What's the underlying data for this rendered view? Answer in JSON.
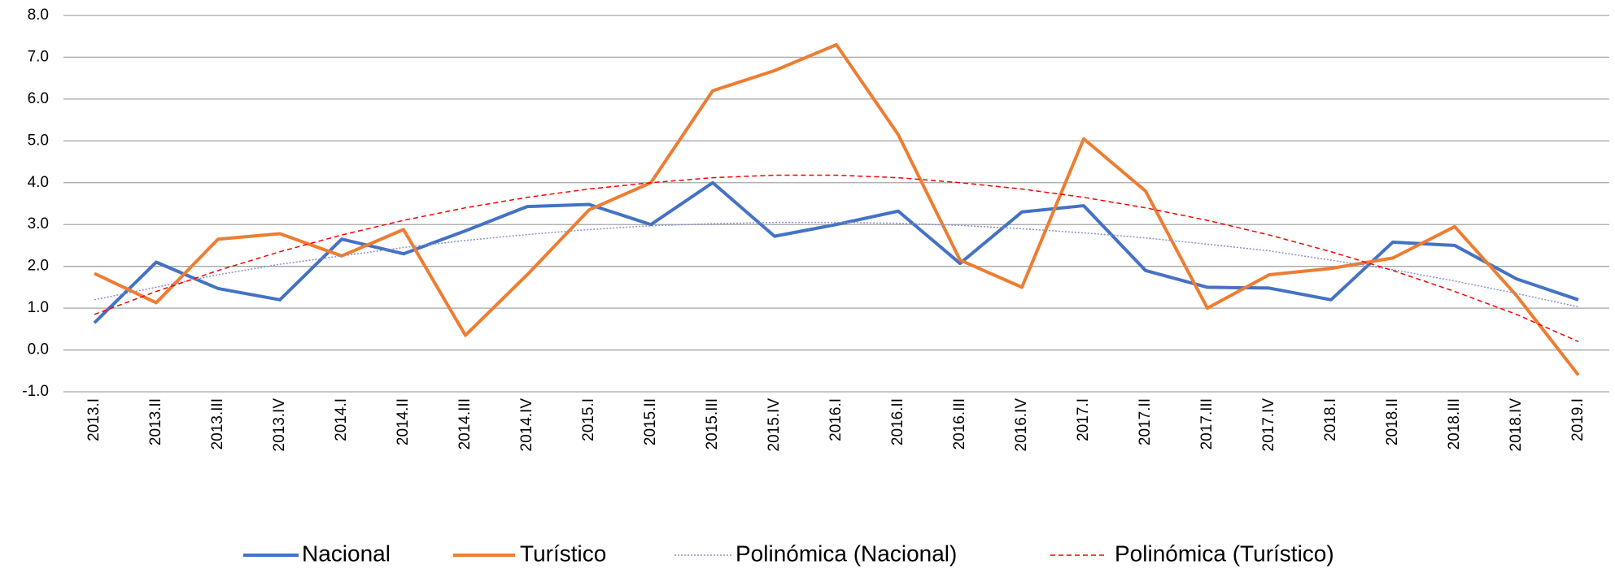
{
  "chart_data": {
    "type": "line",
    "categories": [
      "2013.I",
      "2013.II",
      "2013.III",
      "2013.IV",
      "2014.I",
      "2014.II",
      "2014.III",
      "2014.IV",
      "2015.I",
      "2015.II",
      "2015.III",
      "2015.IV",
      "2016.I",
      "2016.II",
      "2016.III",
      "2016.IV",
      "2017.I",
      "2017.II",
      "2017.III",
      "2017.IV",
      "2018.I",
      "2018.II",
      "2018.III",
      "2018.IV",
      "2019.I"
    ],
    "series": [
      {
        "name": "Nacional",
        "color": "#4472c4",
        "dash": "solid",
        "values": [
          0.65,
          2.1,
          1.47,
          1.2,
          2.65,
          2.3,
          2.85,
          3.43,
          3.48,
          3.0,
          4.0,
          2.72,
          3.0,
          3.32,
          2.07,
          3.3,
          3.45,
          1.9,
          1.5,
          1.48,
          1.2,
          2.58,
          2.5,
          1.7,
          1.2
        ]
      },
      {
        "name": "Turístico",
        "color": "#ed7d31",
        "dash": "solid",
        "values": [
          1.83,
          1.13,
          2.65,
          2.78,
          2.25,
          2.88,
          0.35,
          1.8,
          3.35,
          4.0,
          6.2,
          6.68,
          7.3,
          5.15,
          2.15,
          1.5,
          5.05,
          3.8,
          1.0,
          1.8,
          1.95,
          2.2,
          2.95,
          1.3,
          -0.6
        ]
      },
      {
        "name": "Polinómica (Nacional)",
        "color": "#8a8fcf",
        "dash": "dotted",
        "values": [
          1.2,
          1.5,
          1.8,
          2.05,
          2.25,
          2.45,
          2.62,
          2.76,
          2.88,
          2.97,
          3.02,
          3.05,
          3.05,
          3.03,
          2.98,
          2.9,
          2.8,
          2.68,
          2.53,
          2.37,
          2.15,
          1.92,
          1.65,
          1.35,
          1.03
        ]
      },
      {
        "name": "Polinómica (Turístico)",
        "color": "#ff0000",
        "dash": "dashed",
        "values": [
          0.85,
          1.4,
          1.9,
          2.35,
          2.75,
          3.1,
          3.4,
          3.65,
          3.85,
          4.0,
          4.12,
          4.18,
          4.18,
          4.12,
          4.0,
          3.85,
          3.65,
          3.4,
          3.1,
          2.75,
          2.35,
          1.9,
          1.4,
          0.85,
          0.2
        ]
      }
    ],
    "ylim": [
      -1,
      8
    ],
    "yticks": [
      {
        "value": -1,
        "label": "-1.0"
      },
      {
        "value": 0,
        "label": "0.0"
      },
      {
        "value": 1,
        "label": "1.0"
      },
      {
        "value": 2,
        "label": "2.0"
      },
      {
        "value": 3,
        "label": "3.0"
      },
      {
        "value": 4,
        "label": "4.0"
      },
      {
        "value": 5,
        "label": "5.0"
      },
      {
        "value": 6,
        "label": "6.0"
      },
      {
        "value": 7,
        "label": "7.0"
      },
      {
        "value": 8,
        "label": "8.0"
      }
    ],
    "grid": true,
    "legend": "bottom"
  }
}
